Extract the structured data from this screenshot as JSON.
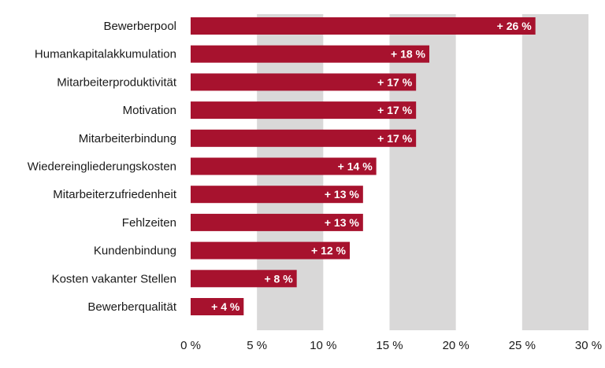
{
  "colors": {
    "bar": "#A7122E",
    "band": "#D9D8D8",
    "background": "#FFFFFF",
    "text": "#1A1A1A",
    "label": "#FFFFFF"
  },
  "chart_data": {
    "type": "bar",
    "orientation": "horizontal",
    "categories": [
      "Bewerberpool",
      "Humankapitalakkumulation",
      "Mitarbeiterproduktivität",
      "Motivation",
      "Mitarbeiterbindung",
      "Wiedereingliederungskosten",
      "Mitarbeiterzufriedenheit",
      "Fehlzeiten",
      "Kundenbindung",
      "Kosten vakanter Stellen",
      "Bewerberqualität"
    ],
    "values": [
      26,
      18,
      17,
      17,
      17,
      14,
      13,
      13,
      12,
      8,
      4
    ],
    "data_labels": [
      "+ 26 %",
      "+ 18 %",
      "+ 17 %",
      "+ 17 %",
      "+ 17 %",
      "+ 14 %",
      "+ 13 %",
      "+ 13 %",
      "+ 12 %",
      "+ 8 %",
      "+ 4 %"
    ],
    "xlim": [
      0,
      30
    ],
    "x_ticks": [
      0,
      5,
      10,
      15,
      20,
      25,
      30
    ],
    "x_tick_labels": [
      "0 %",
      "5 %",
      "10 %",
      "15 %",
      "20 %",
      "25 %",
      "30 %"
    ],
    "title": "",
    "xlabel": "",
    "ylabel": "",
    "grid": "alternating vertical bands"
  }
}
